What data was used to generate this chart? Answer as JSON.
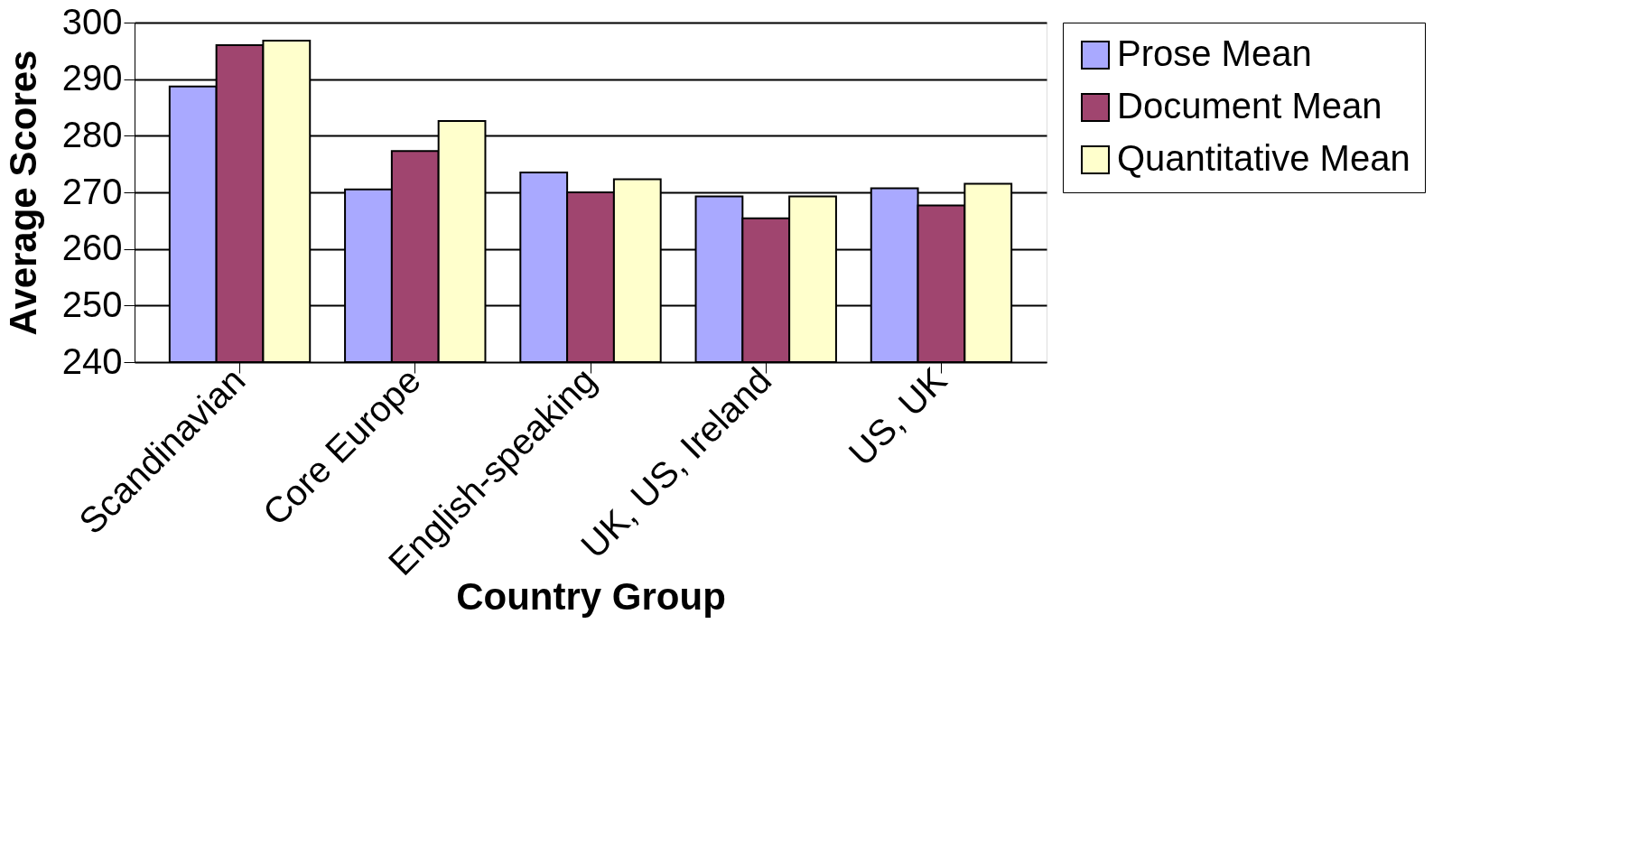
{
  "chart_data": {
    "type": "bar",
    "xlabel": "Country Group",
    "ylabel": "Average Scores",
    "categories": [
      "Scandinavian",
      "Core Europe",
      "English-speaking",
      "UK, US, Ireland",
      "US, UK"
    ],
    "series": [
      {
        "name": "Prose Mean",
        "color": "#a9a9ff",
        "values": [
          288.7,
          270.5,
          273.5,
          269.3,
          270.7
        ]
      },
      {
        "name": "Document Mean",
        "color": "#a0456f",
        "values": [
          296,
          277.3,
          270,
          265.4,
          267.7
        ]
      },
      {
        "name": "Quantitative Mean",
        "color": "#ffffcc",
        "values": [
          296.8,
          282.6,
          272.3,
          269.3,
          271.5
        ]
      }
    ],
    "ylim": [
      240,
      300
    ],
    "yticks": [
      240,
      250,
      260,
      270,
      280,
      290,
      300
    ],
    "grid": "y",
    "legend": "right"
  }
}
